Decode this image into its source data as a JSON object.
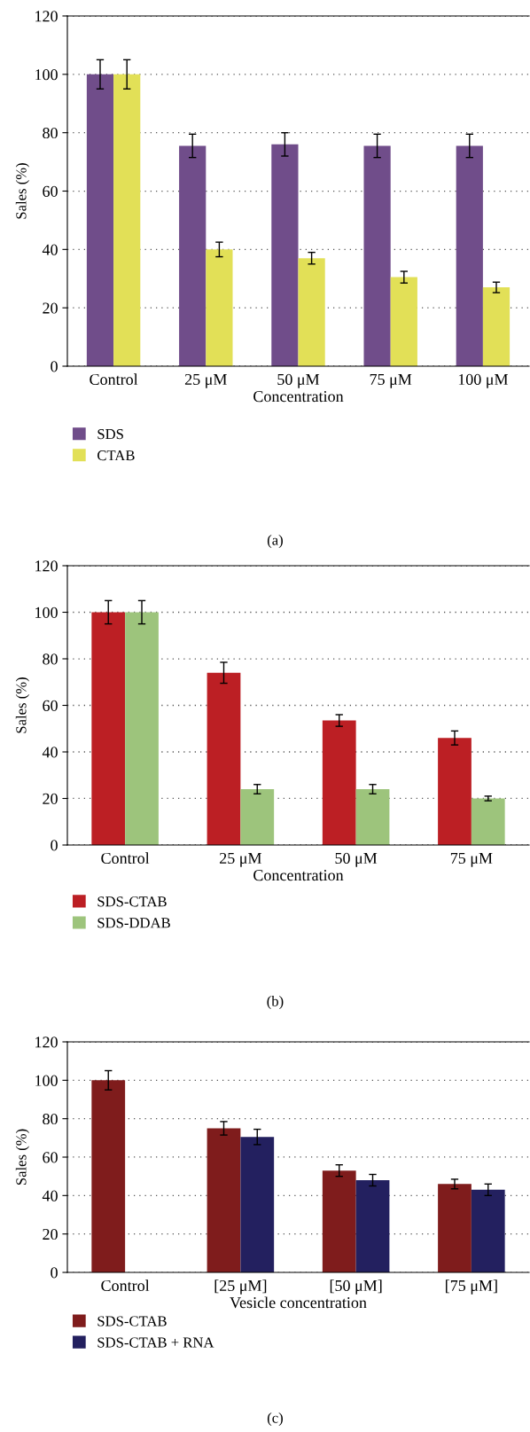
{
  "chart_data": [
    {
      "type": "bar",
      "xlabel": "Concentration",
      "ylabel": "Sales (%)",
      "categories": [
        "Control",
        "25 μM",
        "50 μM",
        "75 μM",
        "100 μM"
      ],
      "ylim": [
        0,
        120
      ],
      "yticks": [
        0,
        20,
        40,
        60,
        80,
        100,
        120
      ],
      "grid": "y",
      "legend": "bottom",
      "annotations": [
        "(a)"
      ],
      "series": [
        {
          "name": "SDS",
          "color": "#704d8a",
          "values": [
            100,
            75.5,
            76,
            75.5,
            75.5
          ],
          "errors": [
            5,
            4,
            4,
            4,
            4
          ]
        },
        {
          "name": "CTAB",
          "color": "#e2e057",
          "values": [
            100,
            40,
            37,
            30.5,
            27
          ],
          "errors": [
            5,
            2.5,
            2,
            2,
            1.8
          ]
        }
      ]
    },
    {
      "type": "bar",
      "xlabel": "Concentration",
      "ylabel": "Sales (%)",
      "categories": [
        "Control",
        "25 μM",
        "50 μM",
        "75 μM"
      ],
      "ylim": [
        0,
        120
      ],
      "yticks": [
        0,
        20,
        40,
        60,
        80,
        100,
        120
      ],
      "grid": "y",
      "legend": "bottom",
      "annotations": [
        "(b)"
      ],
      "series": [
        {
          "name": "SDS-CTAB",
          "color": "#bc1f24",
          "values": [
            100,
            74,
            53.5,
            46
          ],
          "errors": [
            5,
            4.5,
            2.5,
            3
          ]
        },
        {
          "name": "SDS-DDAB",
          "color": "#9dc47c",
          "values": [
            100,
            24,
            24,
            20
          ],
          "errors": [
            5,
            2,
            2,
            1
          ]
        }
      ]
    },
    {
      "type": "bar",
      "xlabel": "Vesicle concentration",
      "ylabel": "Sales (%)",
      "categories": [
        "Control",
        "[25 μM]",
        "[50 μM]",
        "[75 μM]"
      ],
      "ylim": [
        0,
        120
      ],
      "yticks": [
        0,
        20,
        40,
        60,
        80,
        100,
        120
      ],
      "grid": "y",
      "legend": "bottom",
      "annotations": [
        "(c)"
      ],
      "series": [
        {
          "name": "SDS-CTAB",
          "color": "#7f1c1c",
          "values": [
            100,
            75,
            53,
            46
          ],
          "errors": [
            5,
            3.5,
            3,
            2.5
          ]
        },
        {
          "name": "SDS-CTAB + RNA",
          "color": "#23205f",
          "values": [
            null,
            70.5,
            48,
            43
          ],
          "errors": [
            null,
            4,
            3,
            3
          ]
        }
      ]
    }
  ]
}
